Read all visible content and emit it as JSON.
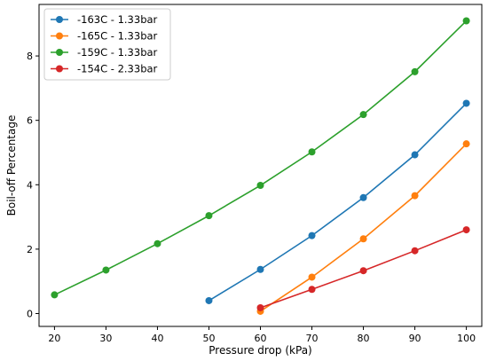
{
  "chart_data": {
    "type": "line",
    "title": "",
    "xlabel": "Pressure drop (kPa)",
    "ylabel": "Boil-off Percentage",
    "xlim": [
      17,
      103
    ],
    "ylim": [
      -0.4,
      9.6
    ],
    "xticks": [
      20,
      30,
      40,
      50,
      60,
      70,
      80,
      90,
      100
    ],
    "yticks": [
      0,
      2,
      4,
      6,
      8
    ],
    "grid": false,
    "legend_position": "top-left",
    "series": [
      {
        "name": "-163C - 1.33bar",
        "color": "#1f77b4",
        "x": [
          50,
          60,
          70,
          80,
          90,
          100
        ],
        "y": [
          0.4,
          1.37,
          2.42,
          3.6,
          4.93,
          6.53
        ]
      },
      {
        "name": "-165C - 1.33bar",
        "color": "#ff7f0e",
        "x": [
          60,
          70,
          80,
          90,
          100
        ],
        "y": [
          0.07,
          1.13,
          2.32,
          3.66,
          5.27
        ]
      },
      {
        "name": "-159C - 1.33bar",
        "color": "#2ca02c",
        "x": [
          20,
          30,
          40,
          50,
          60,
          70,
          80,
          90,
          100
        ],
        "y": [
          0.58,
          1.35,
          2.17,
          3.04,
          3.98,
          5.02,
          6.18,
          7.51,
          9.09
        ]
      },
      {
        "name": "-154C - 2.33bar",
        "color": "#d62728",
        "x": [
          60,
          70,
          80,
          90,
          100
        ],
        "y": [
          0.18,
          0.75,
          1.33,
          1.95,
          2.6
        ]
      }
    ]
  }
}
